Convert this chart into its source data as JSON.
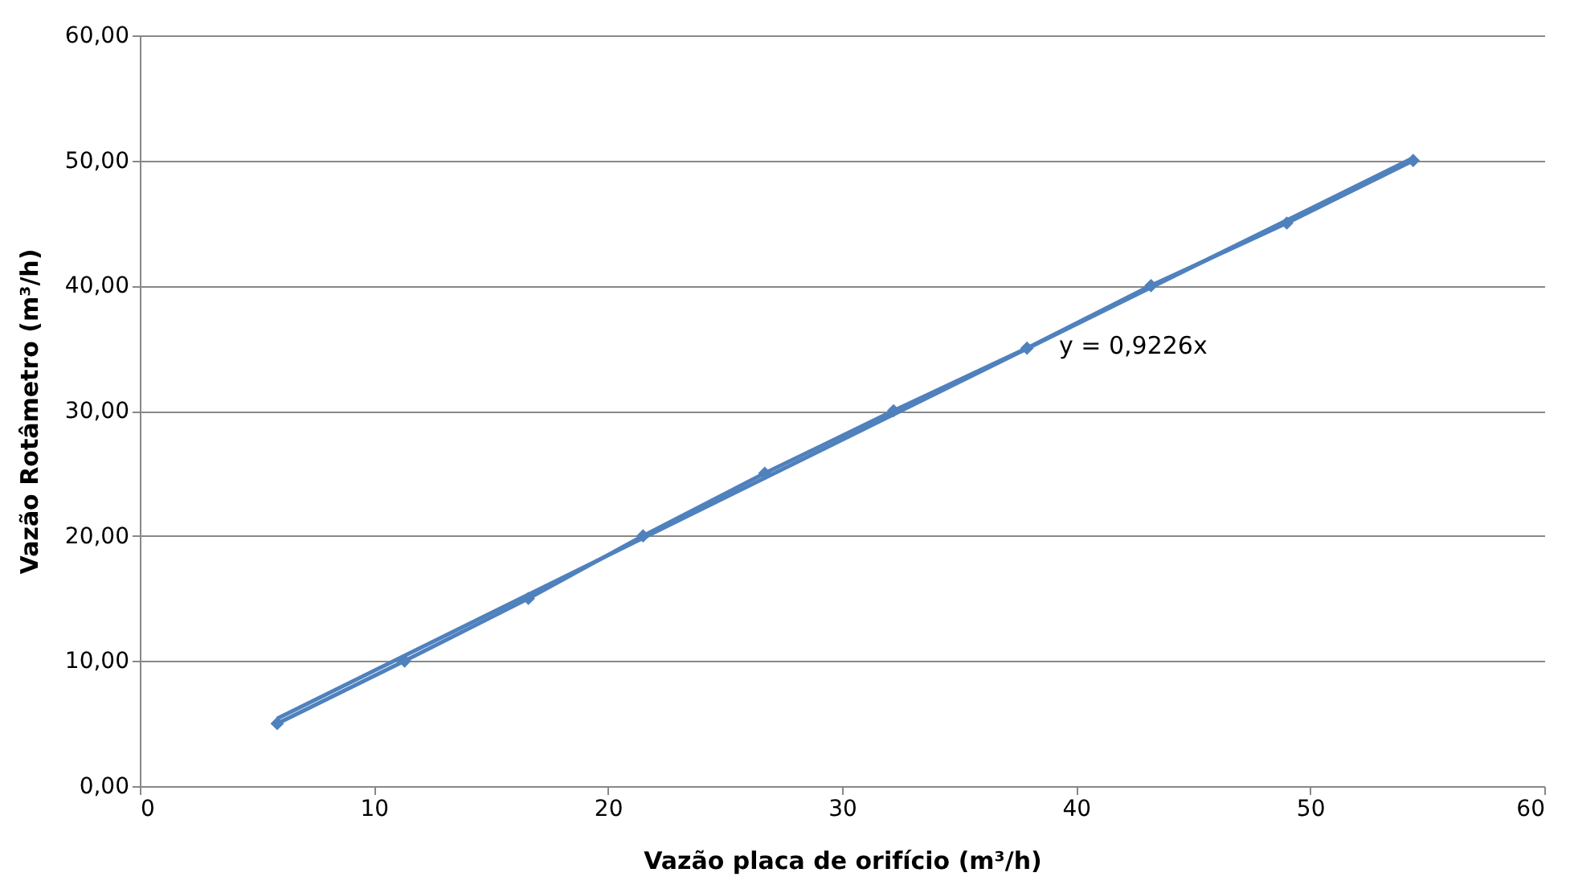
{
  "chart_data": {
    "type": "line",
    "xlabel": "Vazão placa de orifício (m³/h)",
    "ylabel": "Vazão Rotâmetro (m³/h)",
    "series": [
      {
        "color": "#4f81bd",
        "marker": "diamond",
        "line_style": "solid",
        "x": [
          5.87,
          11.31,
          16.6,
          21.5,
          26.7,
          32.2,
          37.9,
          43.2,
          49.0,
          54.4
        ],
        "values": [
          5,
          10,
          15,
          20,
          25,
          30,
          35,
          40,
          45,
          50
        ]
      },
      {
        "color": "#4f81bd",
        "marker": "none",
        "line_style": "solid",
        "x": [
          5.87,
          54.4
        ],
        "values": [
          5.4,
          50.2
        ]
      }
    ],
    "xlim": [
      0,
      60
    ],
    "xticks": [
      0,
      10,
      20,
      30,
      40,
      50,
      60
    ],
    "ylim": [
      0,
      60
    ],
    "yticks": [
      {
        "value": 0,
        "label": "0,00"
      },
      {
        "value": 10,
        "label": "10,00"
      },
      {
        "value": 20,
        "label": "20,00"
      },
      {
        "value": 30,
        "label": "30,00"
      },
      {
        "value": 40,
        "label": "40,00"
      },
      {
        "value": 50,
        "label": "50,00"
      },
      {
        "value": 60,
        "label": "60,00"
      }
    ],
    "grid": "y",
    "annotations": [
      "y = 0,9226x"
    ]
  }
}
